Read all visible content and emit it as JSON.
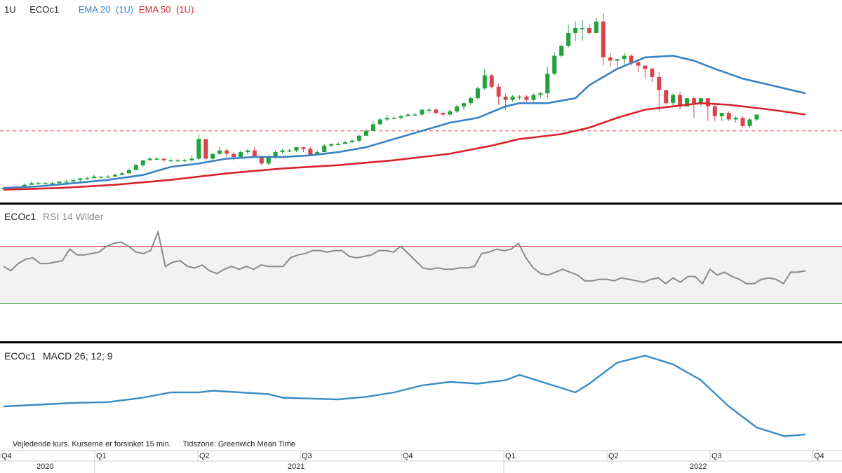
{
  "header": {
    "interval": "1U",
    "symbol": "ECOc1",
    "ema20_label": "EMA 20",
    "ema20_interval": "(1U)",
    "ema50_label": "EMA 50",
    "ema50_interval": "(1U)"
  },
  "rsi_panel": {
    "symbol": "ECOc1",
    "label": "RSI 14 Wilder"
  },
  "macd_panel": {
    "symbol": "ECOc1",
    "label": "MACD 26; 12; 9"
  },
  "footer": {
    "disclaimer": "Vejledende kurs. Kurserne er forsinket 15 min.",
    "timezone": "Tidszone: Greenwich Mean Time"
  },
  "x_axis": {
    "quarter_ticks": [
      "Q4",
      "Q1",
      "Q2",
      "Q3",
      "Q4",
      "Q1",
      "Q2",
      "Q3",
      "Q4"
    ],
    "years": [
      "2020",
      "2021",
      "2022"
    ]
  },
  "colors": {
    "up": "#1fa33a",
    "down": "#d8464a",
    "ema20": "#3a82c4",
    "ema50": "#d8232a",
    "rsi": "#8a8a8a",
    "macd": "#3a8cc4",
    "rsi_upper": "#d8464a",
    "rsi_lower": "#2aa02a"
  },
  "chart_data": [
    {
      "type": "candlestick",
      "title": "ECOc1",
      "interval": "1U",
      "x_unit": "week",
      "candles": [
        [
          5,
          5,
          6,
          4
        ],
        [
          5,
          5,
          6,
          4
        ],
        [
          5,
          6,
          6,
          4
        ],
        [
          6,
          7,
          8,
          6
        ],
        [
          7,
          8,
          9,
          7
        ],
        [
          8,
          8,
          9,
          7
        ],
        [
          8,
          8,
          9,
          8
        ],
        [
          8,
          8,
          9,
          7
        ],
        [
          8,
          9,
          9,
          8
        ],
        [
          9,
          9,
          10,
          8
        ],
        [
          9,
          10,
          10,
          9
        ],
        [
          10,
          11,
          11,
          9
        ],
        [
          11,
          11,
          12,
          10
        ],
        [
          11,
          12,
          13,
          11
        ],
        [
          12,
          12,
          12,
          11
        ],
        [
          12,
          12,
          13,
          12
        ],
        [
          12,
          13,
          14,
          12
        ],
        [
          13,
          14,
          15,
          13
        ],
        [
          14,
          16,
          17,
          14
        ],
        [
          16,
          19,
          20,
          16
        ],
        [
          19,
          22,
          22,
          18
        ],
        [
          22,
          23,
          24,
          22
        ],
        [
          23,
          23,
          24,
          22
        ],
        [
          23,
          22,
          23,
          21
        ],
        [
          22,
          22,
          23,
          21
        ],
        [
          22,
          22,
          23,
          21
        ],
        [
          22,
          22,
          23,
          21
        ],
        [
          22,
          23,
          25,
          21
        ],
        [
          23,
          35,
          38,
          22
        ],
        [
          35,
          23,
          35,
          22
        ],
        [
          23,
          26,
          26,
          22
        ],
        [
          26,
          28,
          30,
          25
        ],
        [
          28,
          26,
          29,
          24
        ],
        [
          26,
          24,
          27,
          22
        ],
        [
          24,
          27,
          28,
          23
        ],
        [
          27,
          28,
          29,
          26
        ],
        [
          28,
          24,
          30,
          24
        ],
        [
          24,
          20,
          25,
          19
        ],
        [
          20,
          24,
          25,
          19
        ],
        [
          24,
          27,
          28,
          23
        ],
        [
          27,
          28,
          29,
          26
        ],
        [
          28,
          28,
          29,
          27
        ],
        [
          28,
          30,
          30,
          27
        ],
        [
          30,
          29,
          30,
          27
        ],
        [
          29,
          25,
          30,
          25
        ],
        [
          25,
          27,
          28,
          25
        ],
        [
          27,
          31,
          32,
          27
        ],
        [
          31,
          32,
          32,
          30
        ],
        [
          32,
          32,
          33,
          31
        ],
        [
          32,
          33,
          34,
          32
        ],
        [
          33,
          34,
          35,
          33
        ],
        [
          34,
          37,
          38,
          33
        ],
        [
          37,
          40,
          41,
          37
        ],
        [
          40,
          44,
          46,
          40
        ],
        [
          44,
          47,
          48,
          44
        ],
        [
          47,
          48,
          50,
          46
        ],
        [
          48,
          48,
          49,
          47
        ],
        [
          48,
          49,
          50,
          47
        ],
        [
          49,
          50,
          51,
          49
        ],
        [
          50,
          50,
          51,
          49
        ],
        [
          50,
          53,
          53,
          49
        ],
        [
          53,
          53,
          54,
          51
        ],
        [
          53,
          51,
          54,
          50
        ],
        [
          51,
          50,
          52,
          49
        ],
        [
          50,
          52,
          53,
          49
        ],
        [
          52,
          55,
          56,
          51
        ],
        [
          55,
          57,
          57,
          53
        ],
        [
          57,
          60,
          61,
          56
        ],
        [
          60,
          66,
          67,
          59
        ],
        [
          66,
          74,
          78,
          65
        ],
        [
          74,
          67,
          75,
          66
        ],
        [
          67,
          61,
          69,
          56
        ],
        [
          61,
          59,
          63,
          53
        ],
        [
          59,
          61,
          62,
          58
        ],
        [
          61,
          61,
          62,
          59
        ],
        [
          61,
          59,
          62,
          58
        ],
        [
          59,
          62,
          63,
          58
        ],
        [
          62,
          63,
          64,
          60
        ],
        [
          63,
          75,
          79,
          60
        ],
        [
          75,
          86,
          88,
          74
        ],
        [
          86,
          92,
          93,
          85
        ],
        [
          92,
          100,
          105,
          91
        ],
        [
          100,
          103,
          107,
          95
        ],
        [
          103,
          103,
          108,
          95
        ],
        [
          103,
          100,
          105,
          99
        ],
        [
          100,
          107,
          109,
          100
        ],
        [
          107,
          85,
          112,
          80
        ],
        [
          85,
          83,
          88,
          79
        ],
        [
          83,
          84,
          84,
          79
        ],
        [
          84,
          86,
          88,
          80
        ],
        [
          86,
          82,
          87,
          80
        ],
        [
          82,
          80,
          83,
          76
        ],
        [
          80,
          78,
          80,
          72
        ],
        [
          78,
          73,
          79,
          70
        ],
        [
          73,
          65,
          76,
          52
        ],
        [
          65,
          57,
          60,
          56
        ],
        [
          57,
          62,
          63,
          55
        ],
        [
          62,
          55,
          64,
          53
        ],
        [
          55,
          60,
          60,
          55
        ],
        [
          60,
          57,
          61,
          48
        ],
        [
          57,
          60,
          60,
          55
        ],
        [
          60,
          55,
          57,
          46
        ],
        [
          55,
          49,
          56,
          46
        ],
        [
          49,
          51,
          51,
          46
        ],
        [
          51,
          47,
          52,
          46
        ],
        [
          47,
          48,
          49,
          45
        ],
        [
          48,
          43,
          49,
          42
        ],
        [
          43,
          47,
          48,
          42
        ],
        [
          47,
          50,
          50,
          46
        ]
      ],
      "ema20": [
        [
          0,
          5
        ],
        [
          5,
          6
        ],
        [
          10,
          8
        ],
        [
          15,
          10
        ],
        [
          20,
          13
        ],
        [
          24,
          18
        ],
        [
          28,
          20
        ],
        [
          32,
          23
        ],
        [
          36,
          24
        ],
        [
          40,
          24
        ],
        [
          44,
          25
        ],
        [
          48,
          27
        ],
        [
          52,
          30
        ],
        [
          56,
          35
        ],
        [
          60,
          40
        ],
        [
          64,
          45
        ],
        [
          68,
          48
        ],
        [
          72,
          55
        ],
        [
          74,
          57
        ],
        [
          78,
          57
        ],
        [
          82,
          60
        ],
        [
          84,
          68
        ],
        [
          88,
          78
        ],
        [
          92,
          85
        ],
        [
          96,
          86
        ],
        [
          99,
          83
        ],
        [
          102,
          78
        ],
        [
          106,
          72
        ],
        [
          110,
          68
        ],
        [
          114,
          64
        ],
        [
          115,
          63
        ]
      ],
      "ema50": [
        [
          0,
          4
        ],
        [
          8,
          5
        ],
        [
          16,
          7
        ],
        [
          24,
          10
        ],
        [
          32,
          14
        ],
        [
          40,
          17
        ],
        [
          48,
          19
        ],
        [
          56,
          22
        ],
        [
          64,
          26
        ],
        [
          70,
          31
        ],
        [
          74,
          35
        ],
        [
          80,
          38
        ],
        [
          84,
          42
        ],
        [
          88,
          48
        ],
        [
          92,
          53
        ],
        [
          96,
          55
        ],
        [
          100,
          57
        ],
        [
          104,
          56
        ],
        [
          110,
          53
        ],
        [
          115,
          50
        ]
      ],
      "reference_line": 40,
      "ylim": [
        0,
        115
      ],
      "xlim": [
        0,
        115
      ]
    },
    {
      "type": "line",
      "title": "RSI 14 Wilder",
      "x_unit": "week",
      "values": [
        56,
        53,
        58,
        61,
        62,
        58,
        58,
        59,
        60,
        68,
        64,
        64,
        65,
        66,
        70,
        72,
        73,
        70,
        66,
        65,
        67,
        80,
        56,
        59,
        60,
        56,
        55,
        57,
        53,
        51,
        54,
        56,
        54,
        56,
        54,
        57,
        56,
        56,
        56,
        62,
        64,
        65,
        67,
        67,
        66,
        67,
        67,
        63,
        62,
        63,
        64,
        67,
        67,
        66,
        70,
        65,
        60,
        55,
        54,
        55,
        54,
        54,
        55,
        55,
        56,
        65,
        66,
        68,
        67,
        68,
        72,
        62,
        55,
        51,
        50,
        52,
        54,
        52,
        50,
        46,
        46,
        47,
        47,
        46,
        48,
        47,
        46,
        45,
        47,
        48,
        44,
        48,
        45,
        49,
        49,
        44,
        54,
        50,
        52,
        49,
        47,
        44,
        44,
        47,
        48,
        47,
        44,
        52,
        52,
        53
      ],
      "upper_band": 70,
      "lower_band": 30,
      "ylim": [
        0,
        100
      ]
    },
    {
      "type": "line",
      "title": "MACD 26; 12; 9",
      "x_unit": "week",
      "values": [
        [
          0,
          -10
        ],
        [
          5,
          -9
        ],
        [
          10,
          -8
        ],
        [
          15,
          -7.5
        ],
        [
          20,
          -5
        ],
        [
          24,
          -2
        ],
        [
          28,
          -2
        ],
        [
          30,
          -1
        ],
        [
          34,
          -2
        ],
        [
          38,
          -3
        ],
        [
          40,
          -5
        ],
        [
          44,
          -5.5
        ],
        [
          48,
          -6
        ],
        [
          52,
          -4.5
        ],
        [
          56,
          -2
        ],
        [
          60,
          2
        ],
        [
          64,
          4
        ],
        [
          68,
          3
        ],
        [
          72,
          5
        ],
        [
          74,
          8
        ],
        [
          78,
          3
        ],
        [
          82,
          -2
        ],
        [
          84,
          3
        ],
        [
          88,
          15
        ],
        [
          92,
          19
        ],
        [
          96,
          14
        ],
        [
          100,
          5
        ],
        [
          104,
          -10
        ],
        [
          108,
          -22
        ],
        [
          112,
          -27
        ],
        [
          115,
          -26
        ]
      ],
      "ylim": [
        -30,
        22
      ]
    }
  ]
}
